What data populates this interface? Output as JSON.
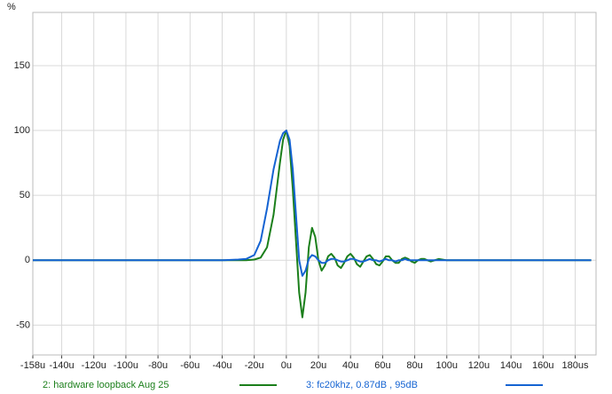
{
  "chart_data": {
    "type": "line",
    "y_label": "%",
    "x": [
      -158,
      -40,
      -30,
      -25,
      -20,
      -16,
      -12,
      -8,
      -4,
      -2,
      0,
      2,
      4,
      6,
      8,
      10,
      12,
      14,
      16,
      18,
      20,
      22,
      24,
      26,
      28,
      30,
      32,
      34,
      36,
      38,
      40,
      42,
      44,
      46,
      48,
      50,
      52,
      54,
      56,
      58,
      60,
      62,
      64,
      66,
      68,
      70,
      72,
      74,
      76,
      78,
      80,
      82,
      84,
      86,
      88,
      90,
      95,
      100,
      110,
      120,
      190
    ],
    "series": [
      {
        "name": "2: hardware loopback Aug 25",
        "color": "#1b7f1b",
        "values": [
          0,
          0,
          0,
          0,
          0.5,
          2,
          10,
          35,
          75,
          93,
          100,
          88,
          55,
          15,
          -25,
          -44,
          -25,
          10,
          25,
          18,
          0,
          -8,
          -4,
          3,
          5,
          2,
          -4,
          -6,
          -2,
          3,
          5,
          2,
          -3,
          -5,
          -1,
          3,
          4,
          1,
          -3,
          -4,
          -1,
          3,
          3,
          0,
          -2,
          -2,
          1,
          2,
          1,
          -1,
          -2,
          0,
          1,
          1,
          0,
          -1,
          1,
          0,
          0,
          0,
          0
        ]
      },
      {
        "name": "3: fc20khz, 0.87dB , 95dB",
        "color": "#1463d2",
        "values": [
          0,
          0,
          0.5,
          1,
          4,
          15,
          40,
          70,
          92,
          98,
          100,
          93,
          70,
          35,
          0,
          -12,
          -8,
          1,
          4,
          3,
          0,
          -2,
          -2,
          0,
          1,
          1,
          0,
          -1,
          -1,
          0,
          1,
          1,
          0,
          -1,
          -1,
          0,
          1,
          0,
          0,
          -1,
          0,
          1,
          0,
          0,
          -1,
          0,
          0,
          1,
          0,
          0,
          0,
          0,
          0,
          0,
          0,
          0,
          0,
          0,
          0,
          0,
          0
        ]
      }
    ],
    "xlim": [
      -158,
      193
    ],
    "xticks": [
      {
        "value": -158,
        "label": "-158u"
      },
      {
        "value": -140,
        "label": "-140u"
      },
      {
        "value": -120,
        "label": "-120u"
      },
      {
        "value": -100,
        "label": "-100u"
      },
      {
        "value": -80,
        "label": "-80u"
      },
      {
        "value": -60,
        "label": "-60u"
      },
      {
        "value": -40,
        "label": "-40u"
      },
      {
        "value": -20,
        "label": "-20u"
      },
      {
        "value": 0,
        "label": "0u"
      },
      {
        "value": 20,
        "label": "20u"
      },
      {
        "value": 40,
        "label": "40u"
      },
      {
        "value": 60,
        "label": "60u"
      },
      {
        "value": 80,
        "label": "80u"
      },
      {
        "value": 100,
        "label": "100u"
      },
      {
        "value": 120,
        "label": "120u"
      },
      {
        "value": 140,
        "label": "140u"
      },
      {
        "value": 160,
        "label": "160u"
      },
      {
        "value": 180,
        "label": "180us"
      }
    ],
    "ylim": [
      -73,
      191
    ],
    "yticks": [
      -50,
      0,
      50,
      100,
      150
    ],
    "grid": true
  }
}
